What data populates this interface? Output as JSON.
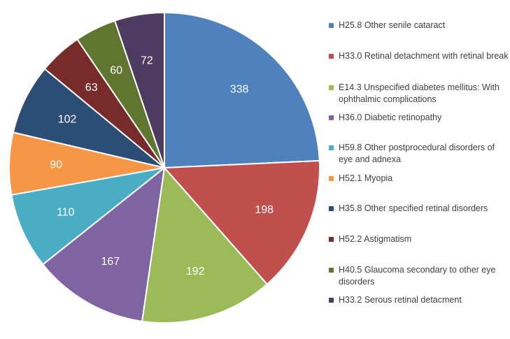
{
  "chart_data": {
    "type": "pie",
    "title": "",
    "legend_position": "right",
    "start_angle_deg": 0,
    "direction": "clockwise",
    "slices": [
      {
        "label": "H25.8 Other senile cataract",
        "value": 338,
        "color": "#4F81BD"
      },
      {
        "label": "H33.0 Retinal detachment with retinal break",
        "value": 198,
        "color": "#C0504D"
      },
      {
        "label": "E14.3 Unspecified diabetes mellitus: With ophthalmic complications",
        "value": 192,
        "color": "#9BBB59"
      },
      {
        "label": "H36.0 Diabetic retinopathy",
        "value": 167,
        "color": "#8064A2"
      },
      {
        "label": "H59.8 Other postprocedural disorders of eye and adnexa",
        "value": 110,
        "color": "#4BACC6"
      },
      {
        "label": "H52.1 Myopia",
        "value": 90,
        "color": "#F79646"
      },
      {
        "label": "H35.8 Other specified retinal disorders",
        "value": 102,
        "color": "#2C4D75"
      },
      {
        "label": "H52.2 Astigmatism",
        "value": 63,
        "color": "#772C2A"
      },
      {
        "label": "H40.5 Glaucoma secondary to other eye disorders",
        "value": 60,
        "color": "#5F7530"
      },
      {
        "label": "H33.2 Serous retinal detacment",
        "value": 72,
        "color": "#4D3B62"
      }
    ]
  }
}
